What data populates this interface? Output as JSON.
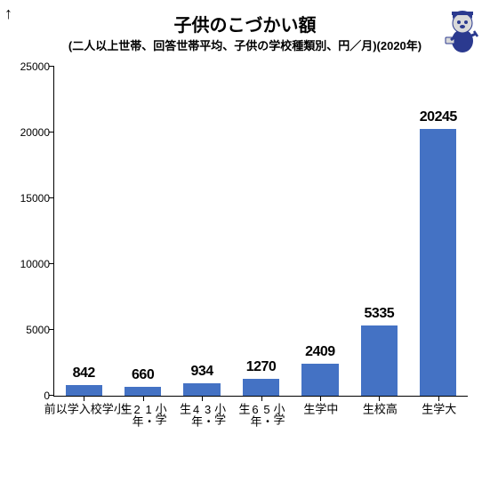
{
  "chart": {
    "type": "bar",
    "title": "子供のこづかい額",
    "subtitle": "(二人以上世帯、回答世帯平均、子供の学校種類別、円／月)(2020年)",
    "title_fontsize": 20,
    "subtitle_fontsize": 13,
    "categories": [
      "小学校入学以前",
      "小学1・2年生",
      "小学3・4年生",
      "小学5・6年生",
      "中学生",
      "高校生",
      "大学生"
    ],
    "values": [
      842,
      660,
      934,
      1270,
      2409,
      5335,
      20245
    ],
    "bar_color": "#4472c4",
    "value_label_fontsize": 16,
    "axis_label_fontsize": 13,
    "tick_fontsize": 12,
    "ylim": [
      0,
      25000
    ],
    "ytick_step": 5000,
    "bar_width": 0.62,
    "background_color": "#ffffff",
    "text_color": "#000000",
    "decorations": {
      "arrow": "↑",
      "mascot": true
    }
  }
}
